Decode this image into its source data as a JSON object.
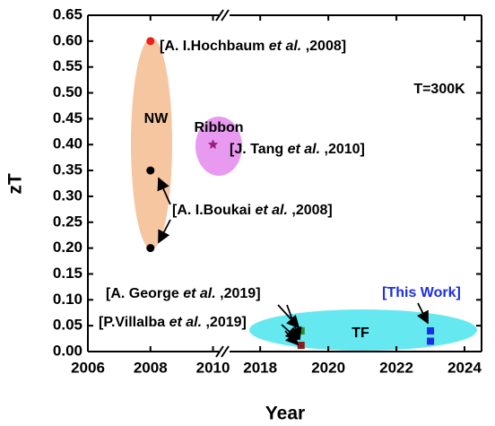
{
  "chart_data": {
    "type": "scatter",
    "y_label": "zT",
    "x_label": "Year",
    "ylim": [
      0,
      0.65
    ],
    "yticks": [
      {
        "value": 0,
        "label": "0.00"
      },
      {
        "value": 0.05,
        "label": "0.05"
      },
      {
        "value": 0.1,
        "label": "0.10"
      },
      {
        "value": 0.15,
        "label": "0.15"
      },
      {
        "value": 0.2,
        "label": "0.20"
      },
      {
        "value": 0.25,
        "label": "0.25"
      },
      {
        "value": 0.3,
        "label": "0.30"
      },
      {
        "value": 0.35,
        "label": "0.35"
      },
      {
        "value": 0.4,
        "label": "0.40"
      },
      {
        "value": 0.45,
        "label": "0.45"
      },
      {
        "value": 0.5,
        "label": "0.50"
      },
      {
        "value": 0.55,
        "label": "0.55"
      },
      {
        "value": 0.6,
        "label": "0.60"
      },
      {
        "value": 0.65,
        "label": "0.65"
      }
    ],
    "x_segments": [
      {
        "xlim": [
          2006,
          2010.3
        ],
        "xticks": [
          2006,
          2008,
          2010
        ]
      },
      {
        "xlim": [
          2017.1,
          2024.5
        ],
        "xticks": [
          2018,
          2020,
          2022,
          2024
        ]
      }
    ],
    "series": [
      {
        "segment": 0,
        "marker": "circle",
        "color": "#e8221c",
        "x": [
          2008
        ],
        "values": [
          0.6
        ]
      },
      {
        "segment": 0,
        "marker": "circle",
        "color": "#000000",
        "x": [
          2008,
          2008
        ],
        "values": [
          0.35,
          0.2
        ]
      },
      {
        "segment": 0,
        "marker": "star",
        "color": "#9b1f7e",
        "x": [
          2010
        ],
        "values": [
          0.4
        ]
      },
      {
        "segment": 1,
        "marker": "square",
        "color": "#2e8b2e",
        "x": [
          2019.2
        ],
        "values": [
          0.04
        ]
      },
      {
        "segment": 1,
        "marker": "square",
        "color": "#8b1a1a",
        "x": [
          2019.2
        ],
        "values": [
          0.012
        ]
      },
      {
        "segment": 1,
        "marker": "square",
        "color": "#1a2ee8",
        "x": [
          2023,
          2023
        ],
        "values": [
          0.04,
          0.02
        ]
      }
    ],
    "annotations": {
      "nw": "NW",
      "ribbon": "Ribbon",
      "tf": "TF",
      "temp": "T=300K",
      "this_work": "[This Work]",
      "hochbaum": [
        "[A. I.Hochbaum ",
        "et al.",
        " ,2008]"
      ],
      "tang": [
        "[J. Tang ",
        "et al.",
        " ,2010]"
      ],
      "boukai": [
        "[A. I.Boukai ",
        "et al.",
        " ,2008]"
      ],
      "george": [
        "[A. George ",
        "et al.",
        " ,2019]"
      ],
      "villalba": [
        "[P.Villalba ",
        "et al.",
        " ,2019]"
      ]
    }
  }
}
